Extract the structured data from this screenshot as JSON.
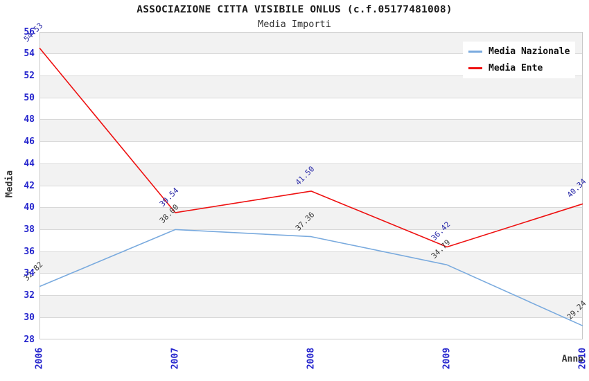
{
  "chart_data": {
    "type": "line",
    "title": "ASSOCIAZIONE CITTA VISIBILE ONLUS (c.f.05177481008)",
    "subtitle": "Media Importi",
    "xlabel": "Anno",
    "ylabel": "Media",
    "categories": [
      "2006",
      "2007",
      "2008",
      "2009",
      "2010"
    ],
    "ylim": [
      28,
      56
    ],
    "ytick_step": 2,
    "yticks": [
      28,
      30,
      32,
      34,
      36,
      38,
      40,
      42,
      44,
      46,
      48,
      50,
      52,
      54,
      56
    ],
    "grid": "horizontal-bands",
    "legend_position": "top-right",
    "value_label_decimals": 2,
    "series": [
      {
        "name": "Media Nazionale",
        "color": "#79aade",
        "label_color": "#3a3a3a",
        "values": [
          32.82,
          38.0,
          37.36,
          34.79,
          29.24
        ]
      },
      {
        "name": "Media Ente",
        "color": "#ee1111",
        "label_color": "#2a2aa8",
        "values": [
          54.53,
          39.54,
          41.5,
          36.42,
          40.34
        ]
      }
    ],
    "colors": {
      "title": "#1a1a1a",
      "subtitle": "#333333",
      "tick_label": "#2525cd",
      "axis_label": "#333333",
      "band_fill": "#f2f2f2",
      "grid_line": "#d8d8d8",
      "plot_border": "#c8c8c8",
      "legend_bg": "#ffffff"
    }
  }
}
